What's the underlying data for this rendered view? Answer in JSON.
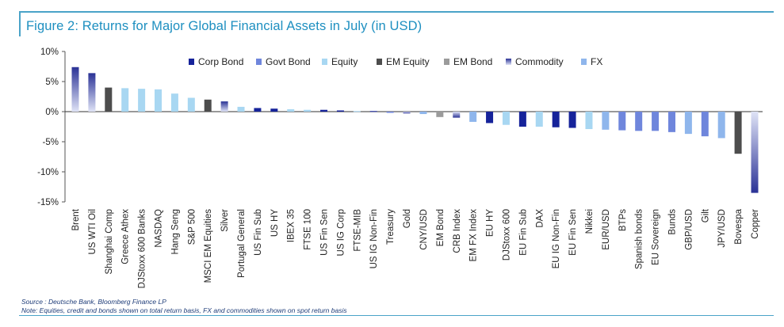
{
  "title": "Figure 2: Returns for Major Global Financial Assets in July (in USD)",
  "source_line": "Source : Deutsche Bank, Bloomberg Finance LP",
  "note_line": "Note: Equities, credit and bonds shown on total return basis, FX and commodities shown on spot return basis",
  "colors": {
    "Corp Bond": "#16239a",
    "Govt Bond": "#6f86dc",
    "Equity": "#a8d7f2",
    "EM Equity": "#4d4d4d",
    "EM Bond": "#9b9b9b",
    "Commodity": "#2a3296",
    "FX": "#8fb6ec"
  },
  "chart_data": {
    "type": "bar",
    "xlabel": "",
    "ylabel": "",
    "ylim": [
      -15,
      10
    ],
    "yticks": [
      10,
      5,
      0,
      -5,
      -10,
      -15
    ],
    "ytick_labels": [
      "10%",
      "5%",
      "0%",
      "-5%",
      "-10%",
      "-15%"
    ],
    "legend_placement": "top-right",
    "legend": [
      "Corp Bond",
      "Govt Bond",
      "Equity",
      "EM Equity",
      "EM Bond",
      "Commodity",
      "FX"
    ],
    "bars": [
      {
        "label": "Brent",
        "value": 7.4,
        "category": "Commodity"
      },
      {
        "label": "US WTI Oil",
        "value": 6.4,
        "category": "Commodity"
      },
      {
        "label": "Shanghai Comp",
        "value": 4.0,
        "category": "EM Equity"
      },
      {
        "label": "Greece Athex",
        "value": 3.9,
        "category": "Equity"
      },
      {
        "label": "DJStoxx 600 Banks",
        "value": 3.8,
        "category": "Equity"
      },
      {
        "label": "NASDAQ",
        "value": 3.7,
        "category": "Equity"
      },
      {
        "label": "Hang Seng",
        "value": 3.0,
        "category": "Equity"
      },
      {
        "label": "S&P 500",
        "value": 2.3,
        "category": "Equity"
      },
      {
        "label": "MSCI EM Equities",
        "value": 2.0,
        "category": "EM Equity"
      },
      {
        "label": "Silver",
        "value": 1.7,
        "category": "Commodity"
      },
      {
        "label": "Portugal General",
        "value": 0.8,
        "category": "Equity"
      },
      {
        "label": "US Fin Sub",
        "value": 0.6,
        "category": "Corp Bond"
      },
      {
        "label": "US HY",
        "value": 0.5,
        "category": "Corp Bond"
      },
      {
        "label": "IBEX 35",
        "value": 0.4,
        "category": "Equity"
      },
      {
        "label": "FTSE 100",
        "value": 0.3,
        "category": "Equity"
      },
      {
        "label": "US Fin Sen",
        "value": 0.3,
        "category": "Corp Bond"
      },
      {
        "label": "US IG Corp",
        "value": 0.2,
        "category": "Corp Bond"
      },
      {
        "label": "FTSE-MIB",
        "value": 0.1,
        "category": "Equity"
      },
      {
        "label": "US IG Non-Fin",
        "value": 0.1,
        "category": "Corp Bond"
      },
      {
        "label": "Treasury",
        "value": -0.2,
        "category": "Govt Bond"
      },
      {
        "label": "Gold",
        "value": -0.3,
        "category": "Commodity"
      },
      {
        "label": "CNY/USD",
        "value": -0.4,
        "category": "FX"
      },
      {
        "label": "EM Bond",
        "value": -0.9,
        "category": "EM Bond"
      },
      {
        "label": "CRB Index",
        "value": -1.0,
        "category": "Commodity"
      },
      {
        "label": "EM FX Index",
        "value": -1.7,
        "category": "FX"
      },
      {
        "label": "EU HY",
        "value": -1.9,
        "category": "Corp Bond"
      },
      {
        "label": "DJStoxx 600",
        "value": -2.2,
        "category": "Equity"
      },
      {
        "label": "EU Fin Sub",
        "value": -2.5,
        "category": "Corp Bond"
      },
      {
        "label": "DAX",
        "value": -2.5,
        "category": "Equity"
      },
      {
        "label": "EU IG Non-Fin",
        "value": -2.6,
        "category": "Corp Bond"
      },
      {
        "label": "EU Fin Sen",
        "value": -2.7,
        "category": "Corp Bond"
      },
      {
        "label": "Nikkei",
        "value": -2.9,
        "category": "Equity"
      },
      {
        "label": "EUR/USD",
        "value": -3.0,
        "category": "FX"
      },
      {
        "label": "BTPs",
        "value": -3.1,
        "category": "Govt Bond"
      },
      {
        "label": "Spanish bonds",
        "value": -3.2,
        "category": "Govt Bond"
      },
      {
        "label": "EU Sovereign",
        "value": -3.2,
        "category": "Govt Bond"
      },
      {
        "label": "Bunds",
        "value": -3.4,
        "category": "Govt Bond"
      },
      {
        "label": "GBP/USD",
        "value": -3.7,
        "category": "FX"
      },
      {
        "label": "Gilt",
        "value": -4.1,
        "category": "Govt Bond"
      },
      {
        "label": "JPY/USD",
        "value": -4.4,
        "category": "FX"
      },
      {
        "label": "Bovespa",
        "value": -7.0,
        "category": "EM Equity"
      },
      {
        "label": "Copper",
        "value": -13.5,
        "category": "Commodity"
      }
    ]
  }
}
